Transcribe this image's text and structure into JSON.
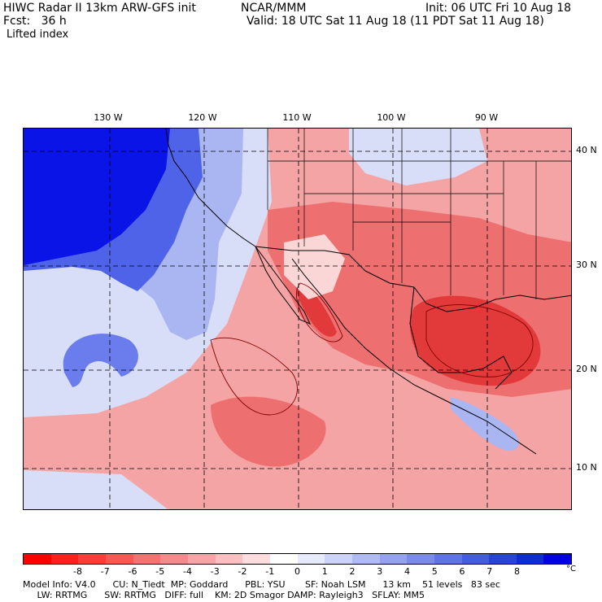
{
  "header": {
    "model_title": "HIWC Radar II 13km ARW-GFS init",
    "agency": "NCAR/MMM",
    "init": "Init: 06 UTC Fri 10 Aug 18",
    "forecast": "Fcst:   36 h",
    "valid": "Valid: 18 UTC Sat 11 Aug 18 (11 PDT Sat 11 Aug 18)",
    "field": "Lifted index"
  },
  "map": {
    "lon_labels": [
      "130 W",
      "120 W",
      "110 W",
      "100 W",
      "90 W"
    ],
    "lat_labels": [
      "40 N",
      "30 N",
      "20 N",
      "10 N"
    ],
    "colors": {
      "deep_blue": "#0a14e6",
      "mid_blue": "#4f63e8",
      "light_blue": "#aab6f2",
      "very_light_blue": "#d9def8",
      "very_light_red": "#fbd6d6",
      "light_red": "#f4a4a4",
      "mid_red": "#ee6f6f",
      "deep_red": "#e23a3a",
      "contour": "#800000"
    }
  },
  "legend": {
    "colors": [
      "#ff0000",
      "#ff1f1f",
      "#ff3a3a",
      "#f95656",
      "#f67171",
      "#f28b8b",
      "#f5a5a5",
      "#f8c0c0",
      "#fcdcdc",
      "#ffffff",
      "#e6eafb",
      "#cbd3f6",
      "#b0bbf1",
      "#95a3ec",
      "#7a8ce7",
      "#5f74e2",
      "#445cdd",
      "#2944d8",
      "#0e2dd3",
      "#0000e0"
    ],
    "ticks": [
      "-8",
      "-7",
      "-6",
      "-5",
      "-4",
      "-3",
      "-2",
      "-1",
      "0",
      "1",
      "2",
      "3",
      "4",
      "5",
      "6",
      "7",
      "8"
    ],
    "unit": "°C"
  },
  "footer": {
    "line1": "Model Info: V4.0      CU: N_Tiedt  MP: Goddard      PBL: YSU       SF: Noah LSM      13 km    51 levels   83 sec",
    "line2": "     LW: RRTMG      SW: RRTMG   DIFF: full    KM: 2D Smagor DAMP: Rayleigh3   SFLAY: MM5"
  }
}
